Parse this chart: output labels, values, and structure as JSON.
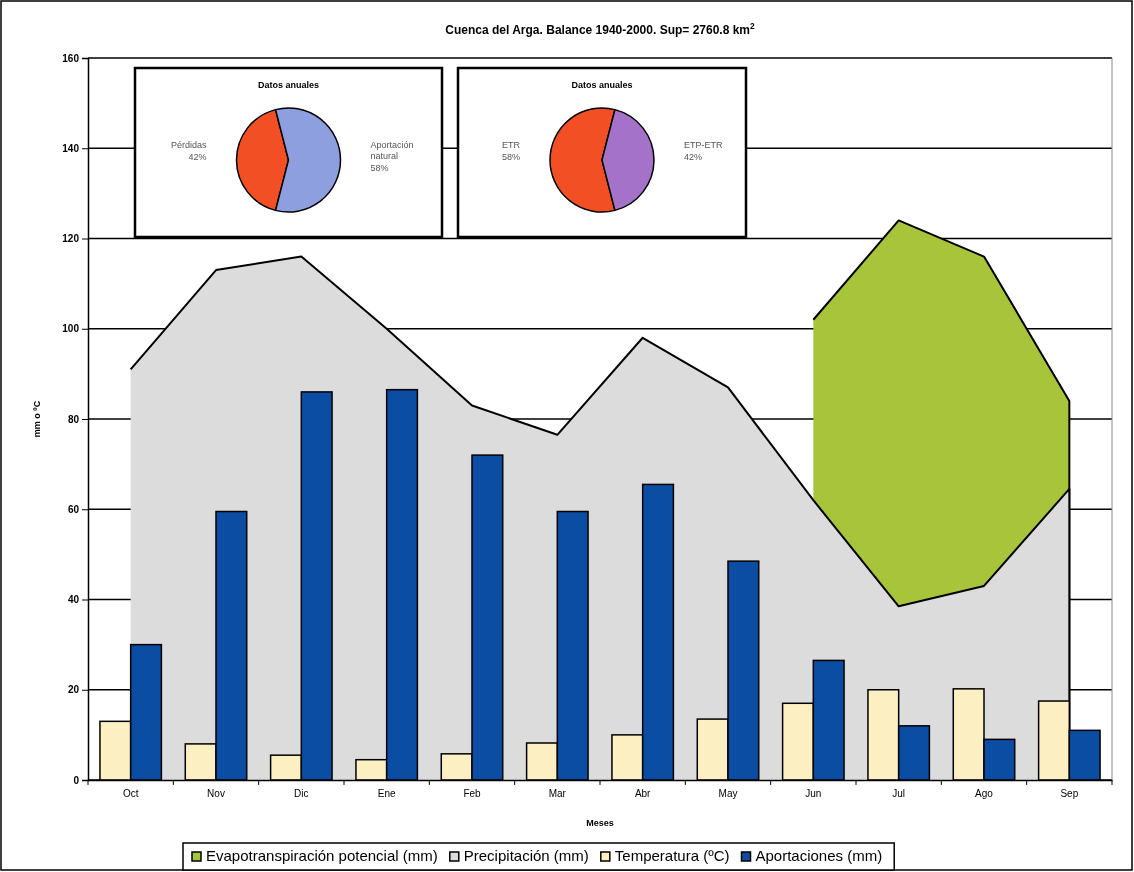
{
  "chart_data": [
    {
      "type": "bar",
      "title": "Cuenca del Arga. Balance 1940-2000. Sup= 2760.8 km$^{2}$",
      "xlabel": "Meses",
      "ylabel": "mm o ºC",
      "categories": [
        "Oct",
        "Nov",
        "Dic",
        "Ene",
        "Feb",
        "Mar",
        "Abr",
        "May",
        "Jun",
        "Jul",
        "Ago",
        "Sep"
      ],
      "series": [
        {
          "name": "Evapotranspiración potencial (mm)",
          "type": "area",
          "color": "#a8c43a",
          "values": [
            null,
            null,
            null,
            null,
            null,
            null,
            null,
            null,
            102,
            124,
            116,
            84
          ]
        },
        {
          "name": "Precipitación (mm)",
          "type": "area",
          "color": "#dcdcdc",
          "values": [
            91,
            113,
            116,
            100,
            83,
            76.5,
            98,
            87,
            62,
            38.5,
            43,
            64.5
          ]
        },
        {
          "name": "Temperatura (ºC)",
          "type": "bar",
          "color": "#fcf0c2",
          "values": [
            13,
            8,
            5.5,
            4.5,
            5.8,
            8.2,
            10,
            13.5,
            17,
            20,
            20.2,
            17.5
          ]
        },
        {
          "name": "Aportaciones (mm)",
          "type": "bar",
          "color": "#0a4da3",
          "values": [
            30,
            59.5,
            86,
            86.5,
            72,
            59.5,
            65.5,
            48.5,
            26.5,
            12,
            9,
            11
          ]
        }
      ],
      "ylim": [
        0,
        160
      ],
      "yticks": [
        0,
        20,
        40,
        60,
        80,
        100,
        120,
        140,
        160
      ],
      "grid": "y",
      "legend": "bottom"
    },
    {
      "type": "pie",
      "title": "Datos anuales",
      "categories": [
        "Pérdidas",
        "Aportación natural"
      ],
      "values": [
        42,
        58
      ],
      "colors": [
        "#f24f24",
        "#8d9fdf"
      ],
      "value_labels": [
        "42%",
        "58%"
      ]
    },
    {
      "type": "pie",
      "title": "Datos anuales",
      "categories": [
        "ETR",
        "ETP-ETR"
      ],
      "values": [
        58,
        42
      ],
      "colors": [
        "#f24f24",
        "#a472c9"
      ],
      "value_labels": [
        "58%",
        "42%"
      ]
    }
  ]
}
